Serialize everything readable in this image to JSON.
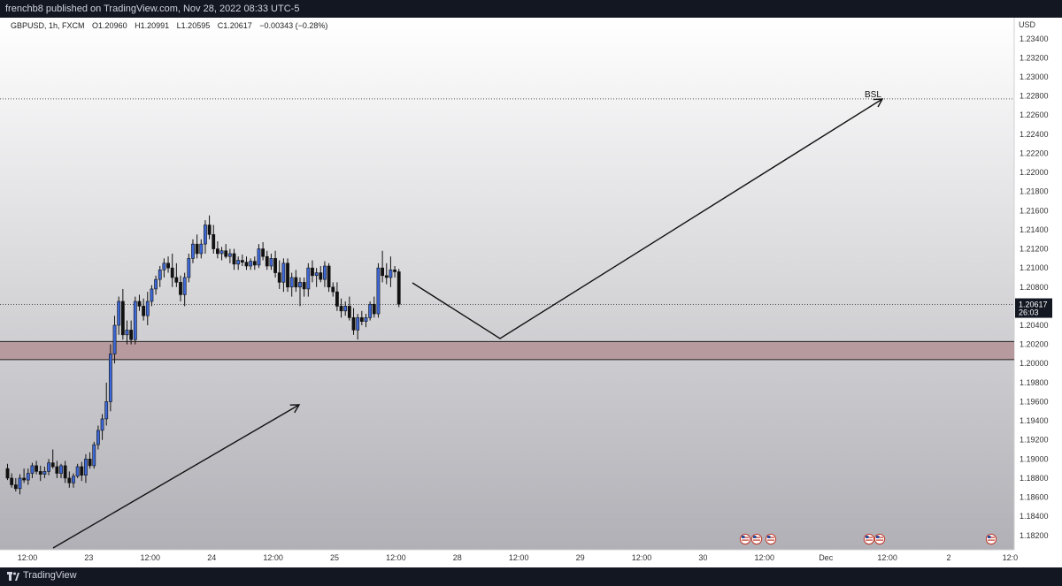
{
  "header": {
    "published_text": "frenchb8 published on TradingView.com, Nov 28, 2022 08:33 UTC-5"
  },
  "legend": {
    "symbol_text": "GBPUSD, 1h, FXCM",
    "open": "O1.20960",
    "high": "H1.20991",
    "low": "L1.20595",
    "close": "C1.20617",
    "change": "−0.00343 (−0.28%)"
  },
  "footer": {
    "brand": "TradingView"
  },
  "colors": {
    "background_top": "#ffffff",
    "background_bottom": "#b0b0b6",
    "up_candle": "#3d68d8",
    "down_candle": "#111111",
    "zone_fill": "#b79a9d",
    "price_label_bg": "#131722"
  },
  "icons": [
    "us-flag-event-icon",
    "tradingview-logo-icon"
  ],
  "chart_data": {
    "type": "candlestick",
    "symbol": "GBPUSD",
    "timeframe": "1h",
    "currency": "USD",
    "ylim": [
      1.1805,
      1.2362
    ],
    "y_ticks": [
      "1.23400",
      "1.23200",
      "1.23000",
      "1.22800",
      "1.22600",
      "1.22400",
      "1.22200",
      "1.22000",
      "1.21800",
      "1.21600",
      "1.21400",
      "1.21200",
      "1.21000",
      "1.20800",
      "1.20400",
      "1.20200",
      "1.20000",
      "1.19800",
      "1.19600",
      "1.19400",
      "1.19200",
      "1.19000",
      "1.18800",
      "1.18600",
      "1.18400",
      "1.18200"
    ],
    "x_ticks": [
      "12:00",
      "23",
      "12:00",
      "24",
      "12:00",
      "25",
      "12:00",
      "28",
      "12:00",
      "29",
      "12:00",
      "30",
      "12:00",
      "Dec",
      "12:00",
      "2",
      "12:0"
    ],
    "last_price": "1.20617",
    "countdown": "26:03",
    "annotations": {
      "level_label": "BSL"
    },
    "zone": {
      "low": 1.2004,
      "high": 1.2023
    },
    "level_line": 1.2277,
    "current_price_line": 1.20617,
    "event_flags": 6,
    "candles": [
      [
        1.189,
        1.1895,
        1.1878,
        1.188
      ],
      [
        1.188,
        1.1885,
        1.187,
        1.1873
      ],
      [
        1.1873,
        1.188,
        1.1866,
        1.1869
      ],
      [
        1.1869,
        1.1884,
        1.1863,
        1.188
      ],
      [
        1.188,
        1.189,
        1.1875,
        1.1878
      ],
      [
        1.1878,
        1.189,
        1.1873,
        1.1885
      ],
      [
        1.1885,
        1.1896,
        1.188,
        1.1893
      ],
      [
        1.1893,
        1.1898,
        1.1884,
        1.1887
      ],
      [
        1.1887,
        1.1893,
        1.1877,
        1.1884
      ],
      [
        1.1884,
        1.1892,
        1.188,
        1.1887
      ],
      [
        1.1887,
        1.19,
        1.1883,
        1.1896
      ],
      [
        1.1896,
        1.191,
        1.189,
        1.1892
      ],
      [
        1.1892,
        1.1898,
        1.188,
        1.1885
      ],
      [
        1.1885,
        1.1895,
        1.188,
        1.1893
      ],
      [
        1.1893,
        1.1898,
        1.1875,
        1.188
      ],
      [
        1.188,
        1.1887,
        1.187,
        1.1875
      ],
      [
        1.1875,
        1.1885,
        1.187,
        1.1882
      ],
      [
        1.1882,
        1.1895,
        1.188,
        1.1892
      ],
      [
        1.1892,
        1.1897,
        1.1877,
        1.1883
      ],
      [
        1.1883,
        1.1905,
        1.1875,
        1.19
      ],
      [
        1.19,
        1.1907,
        1.189,
        1.1893
      ],
      [
        1.1893,
        1.1918,
        1.189,
        1.1915
      ],
      [
        1.1915,
        1.1935,
        1.191,
        1.193
      ],
      [
        1.193,
        1.1947,
        1.192,
        1.1942
      ],
      [
        1.1942,
        1.198,
        1.1935,
        1.196
      ],
      [
        1.196,
        1.202,
        1.195,
        1.201
      ],
      [
        1.201,
        1.205,
        1.2,
        1.204
      ],
      [
        1.204,
        1.207,
        1.203,
        1.2065
      ],
      [
        1.2065,
        1.2078,
        1.2025,
        1.203
      ],
      [
        1.203,
        1.2045,
        1.202,
        1.2035
      ],
      [
        1.2035,
        1.2045,
        1.202,
        1.2025
      ],
      [
        1.2025,
        1.207,
        1.202,
        1.2065
      ],
      [
        1.2065,
        1.2072,
        1.2055,
        1.206
      ],
      [
        1.206,
        1.2068,
        1.2045,
        1.205
      ],
      [
        1.205,
        1.2075,
        1.204,
        1.2065
      ],
      [
        1.2065,
        1.2082,
        1.206,
        1.2078
      ],
      [
        1.2078,
        1.2092,
        1.2072,
        1.2088
      ],
      [
        1.2088,
        1.2102,
        1.208,
        1.2098
      ],
      [
        1.2098,
        1.211,
        1.209,
        1.2105
      ],
      [
        1.2105,
        1.2112,
        1.2095,
        1.21
      ],
      [
        1.21,
        1.2115,
        1.208,
        1.209
      ],
      [
        1.209,
        1.2105,
        1.208,
        1.2085
      ],
      [
        1.2085,
        1.2092,
        1.2065,
        1.2072
      ],
      [
        1.2072,
        1.2095,
        1.206,
        1.209
      ],
      [
        1.209,
        1.2115,
        1.2085,
        1.211
      ],
      [
        1.211,
        1.213,
        1.2105,
        1.2125
      ],
      [
        1.2125,
        1.2135,
        1.211,
        1.2115
      ],
      [
        1.2115,
        1.213,
        1.211,
        1.2125
      ],
      [
        1.2125,
        1.215,
        1.2115,
        1.2145
      ],
      [
        1.2145,
        1.2155,
        1.213,
        1.2135
      ],
      [
        1.2135,
        1.2145,
        1.2115,
        1.212
      ],
      [
        1.212,
        1.2128,
        1.211,
        1.2115
      ],
      [
        1.2115,
        1.2122,
        1.2108,
        1.2118
      ],
      [
        1.2118,
        1.2125,
        1.211,
        1.2112
      ],
      [
        1.2112,
        1.212,
        1.2105,
        1.2115
      ],
      [
        1.2115,
        1.212,
        1.2098,
        1.2104
      ],
      [
        1.2104,
        1.2112,
        1.2098,
        1.2108
      ],
      [
        1.2108,
        1.2114,
        1.2102,
        1.2106
      ],
      [
        1.2106,
        1.2112,
        1.2098,
        1.2102
      ],
      [
        1.2102,
        1.211,
        1.2098,
        1.2107
      ],
      [
        1.2107,
        1.2112,
        1.2098,
        1.2103
      ],
      [
        1.2103,
        1.2125,
        1.21,
        1.212
      ],
      [
        1.212,
        1.2127,
        1.2108,
        1.2112
      ],
      [
        1.2112,
        1.2118,
        1.2098,
        1.2102
      ],
      [
        1.2102,
        1.2115,
        1.2098,
        1.211
      ],
      [
        1.211,
        1.2118,
        1.209,
        1.2095
      ],
      [
        1.2095,
        1.2108,
        1.2078,
        1.2085
      ],
      [
        1.2085,
        1.211,
        1.2075,
        1.2105
      ],
      [
        1.2105,
        1.211,
        1.2075,
        1.208
      ],
      [
        1.208,
        1.2095,
        1.207,
        1.209
      ],
      [
        1.209,
        1.2098,
        1.2075,
        1.208
      ],
      [
        1.208,
        1.209,
        1.206,
        1.2085
      ],
      [
        1.2085,
        1.209,
        1.207,
        1.2078
      ],
      [
        1.2078,
        1.2105,
        1.207,
        1.21
      ],
      [
        1.21,
        1.2108,
        1.2085,
        1.2092
      ],
      [
        1.2092,
        1.21,
        1.208,
        1.2095
      ],
      [
        1.2095,
        1.2102,
        1.2085,
        1.2088
      ],
      [
        1.2088,
        1.2107,
        1.208,
        1.2102
      ],
      [
        1.2102,
        1.2105,
        1.2075,
        1.208
      ],
      [
        1.208,
        1.2085,
        1.207,
        1.2075
      ],
      [
        1.2075,
        1.2085,
        1.2055,
        1.206
      ],
      [
        1.206,
        1.2068,
        1.2048,
        1.2055
      ],
      [
        1.2055,
        1.2065,
        1.205,
        1.206
      ],
      [
        1.206,
        1.207,
        1.2045,
        1.2048
      ],
      [
        1.2048,
        1.2058,
        1.203,
        1.2035
      ],
      [
        1.2035,
        1.2052,
        1.2025,
        1.2048
      ],
      [
        1.2048,
        1.2055,
        1.204,
        1.2044
      ],
      [
        1.2044,
        1.2052,
        1.2038,
        1.2048
      ],
      [
        1.2048,
        1.2065,
        1.2045,
        1.2062
      ],
      [
        1.2062,
        1.207,
        1.2048,
        1.2052
      ],
      [
        1.2052,
        1.2105,
        1.2048,
        1.21
      ],
      [
        1.21,
        1.2118,
        1.2085,
        1.2092
      ],
      [
        1.2092,
        1.2105,
        1.2083,
        1.209
      ],
      [
        1.209,
        1.2112,
        1.208,
        1.2098
      ],
      [
        1.2098,
        1.2102,
        1.209,
        1.2096
      ],
      [
        1.2096,
        1.2099,
        1.2059,
        1.2062
      ]
    ]
  }
}
